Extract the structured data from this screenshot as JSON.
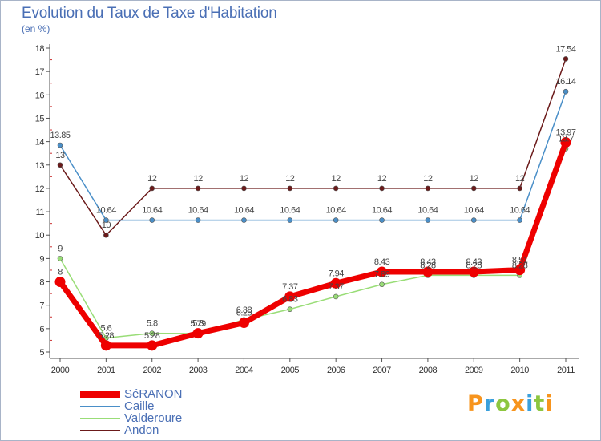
{
  "header": {
    "title": "Evolution du Taux de Taxe d'Habitation",
    "subtitle": "(en %)"
  },
  "logo": {
    "text": "Proxiti",
    "letter_colors": [
      "#f7941d",
      "#3aa0dc",
      "#8dc63f",
      "#f7941d",
      "#3aa0dc",
      "#8dc63f",
      "#f7941d"
    ]
  },
  "chart_data": {
    "type": "line",
    "title": "Evolution du Taux de Taxe d'Habitation",
    "ylabel": "(en %)",
    "xlabel": "",
    "ylim": [
      5,
      18
    ],
    "yticks": [
      5,
      6,
      7,
      8,
      9,
      10,
      11,
      12,
      13,
      14,
      15,
      16,
      17,
      18
    ],
    "categories": [
      "2000",
      "2001",
      "2002",
      "2003",
      "2004",
      "2005",
      "2006",
      "2007",
      "2008",
      "2009",
      "2010",
      "2011"
    ],
    "grid": false,
    "legend_position": "bottom-left",
    "series": [
      {
        "name": "Andon",
        "color": "#6b1a1a",
        "values": [
          13,
          10,
          12,
          12,
          12,
          12,
          12,
          12,
          12,
          12,
          12,
          17.54
        ],
        "labels": [
          "13",
          "10",
          "12",
          "12",
          "12",
          "12",
          "12",
          "12",
          "12",
          "12",
          "12",
          "17.54"
        ]
      },
      {
        "name": "Caille",
        "color": "#4a8fc8",
        "values": [
          13.85,
          10.64,
          10.64,
          10.64,
          10.64,
          10.64,
          10.64,
          10.64,
          10.64,
          10.64,
          10.64,
          16.14
        ],
        "labels": [
          "13.85",
          "10.64",
          "10.64",
          "10.64",
          "10.64",
          "10.64",
          "10.64",
          "10.64",
          "10.64",
          "10.64",
          "10.64",
          "16.14"
        ]
      },
      {
        "name": "Valderoure",
        "color": "#99dd77",
        "values": [
          9,
          5.6,
          5.8,
          5.79,
          6.38,
          6.83,
          7.37,
          7.89,
          8.28,
          8.28,
          8.28,
          13.7
        ],
        "labels": [
          "9",
          "5.6",
          "5.8",
          "5.79",
          "6.38",
          "6.83",
          "7.37",
          "7.89",
          "8.28",
          "8.28",
          "8.28",
          "13.7"
        ]
      },
      {
        "name": "SéRANON",
        "color": "#ee0000",
        "values": [
          8,
          5.28,
          5.28,
          5.8,
          6.25,
          7.37,
          7.94,
          8.43,
          8.43,
          8.43,
          8.51,
          13.97
        ],
        "labels": [
          "8",
          "5.28",
          "5.28",
          "5.8",
          "6.25",
          "7.37",
          "7.94",
          "8.43",
          "8.43",
          "8.43",
          "8.51",
          "13.97"
        ]
      }
    ],
    "legend_order": [
      "SéRANON",
      "Caille",
      "Valderoure",
      "Andon"
    ]
  }
}
